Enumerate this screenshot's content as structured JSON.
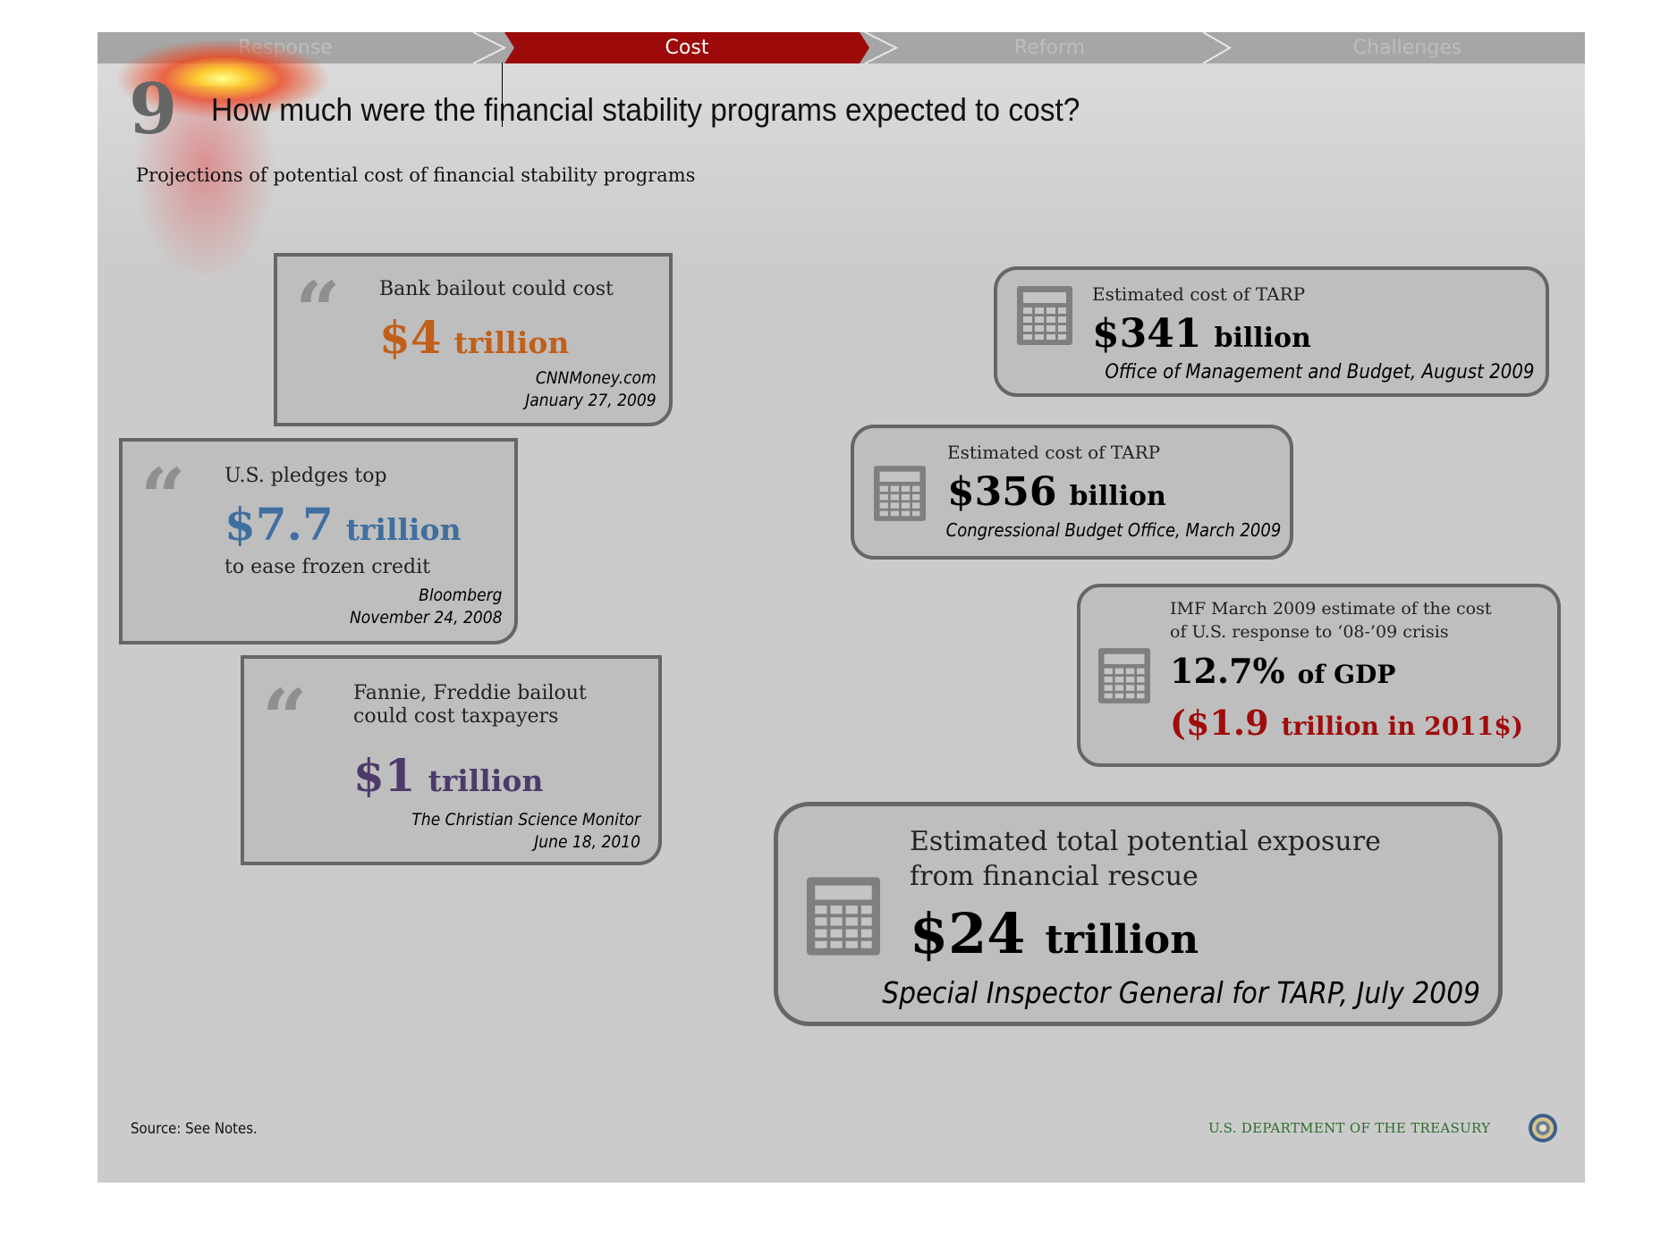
{
  "nav": {
    "tabs": [
      {
        "label": "Response",
        "active": false
      },
      {
        "label": "Cost",
        "active": true
      },
      {
        "label": "Reform",
        "active": false
      },
      {
        "label": "Challenges",
        "active": false
      }
    ],
    "active_color": "#9c0a0a"
  },
  "header": {
    "number": "9",
    "title": "How much were the financial stability programs expected to cost?",
    "subtitle": "Projections of potential cost of financial stability programs"
  },
  "quotes": [
    {
      "lead": "Bank bailout could cost",
      "amount": "$4",
      "unit": "trillion",
      "color": "#c0601a",
      "source": "CNNMoney.com",
      "date": "January 27, 2009"
    },
    {
      "lead": "U.S. pledges top",
      "amount": "$7.7",
      "unit": "trillion",
      "tail": "to ease frozen credit",
      "color": "#3f6f9f",
      "source": "Bloomberg",
      "date": "November 24, 2008"
    },
    {
      "lead_line1": "Fannie, Freddie bailout",
      "lead_line2": "could cost taxpayers",
      "amount": "$1",
      "unit": "trillion",
      "color": "#4e3a6a",
      "source": "The Christian Science Monitor",
      "date": "June 18, 2010"
    }
  ],
  "estimates": [
    {
      "lead": "Estimated cost of TARP",
      "amount": "$341",
      "unit": "billion",
      "source": "Office of Management and Budget, August 2009"
    },
    {
      "lead": "Estimated cost of TARP",
      "amount": "$356",
      "unit": "billion",
      "source": "Congressional Budget Office, March 2009"
    },
    {
      "lead_line1": "IMF March 2009 estimate of the cost",
      "lead_line2": "of U.S. response to ‘08-’09 crisis",
      "amount": "12.7%",
      "unit": "of GDP",
      "extra_amount": "($1.9",
      "extra_unit": "trillion in 2011$)",
      "extra_color": "#a00c0c"
    },
    {
      "lead_line1": "Estimated total potential exposure",
      "lead_line2": "from financial rescue",
      "amount": "$24",
      "unit": "trillion",
      "source": "Special Inspector General for TARP, July 2009"
    }
  ],
  "icons": {
    "quote": "quote-mark-icon",
    "calculator": "calculator-icon",
    "seal": "treasury-seal-icon"
  },
  "footer": {
    "source": "Source: See Notes.",
    "department": "U.S. DEPARTMENT OF THE TREASURY"
  }
}
